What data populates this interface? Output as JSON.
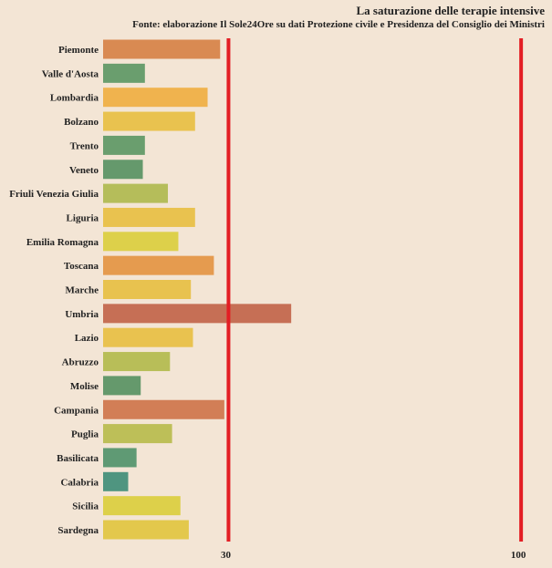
{
  "chart_data": {
    "type": "bar",
    "orientation": "horizontal",
    "title": "La saturazione delle terapie intensive",
    "subtitle": "Fonte: elaborazione Il Sole24Ore su dati Protezione civile e Presidenza del Consiglio dei Ministri",
    "categories": [
      "Piemonte",
      "Valle d'Aosta",
      "Lombardia",
      "Bolzano",
      "Trento",
      "Veneto",
      "Friuli Venezia Giulia",
      "Liguria",
      "Emilia Romagna",
      "Toscana",
      "Marche",
      "Umbria",
      "Lazio",
      "Abruzzo",
      "Molise",
      "Campania",
      "Puglia",
      "Basilicata",
      "Calabria",
      "Sicilia",
      "Sardegna"
    ],
    "values": [
      28,
      10,
      25,
      22,
      10,
      9.5,
      15.5,
      22,
      18,
      26.5,
      21,
      45,
      21.5,
      16,
      9,
      29,
      16.5,
      8,
      6,
      18.5,
      20.5
    ],
    "colors": [
      "#d98a52",
      "#6a9e6e",
      "#f0b34e",
      "#e9c24f",
      "#6a9e6e",
      "#65996c",
      "#b5bd5a",
      "#e9c24f",
      "#ddd04a",
      "#e59b4f",
      "#e8c24f",
      "#c66f55",
      "#e9c24f",
      "#b8be58",
      "#65996c",
      "#d27e56",
      "#bdbf58",
      "#5f9a74",
      "#4f9580",
      "#ddd04a",
      "#e3c84c"
    ],
    "xlim": [
      0,
      101.5
    ],
    "thresholds": [
      {
        "value": 30,
        "label": "30",
        "color": "#e31e24"
      },
      {
        "value": 100,
        "label": "100",
        "color": "#e31e24"
      }
    ],
    "grid": false
  }
}
